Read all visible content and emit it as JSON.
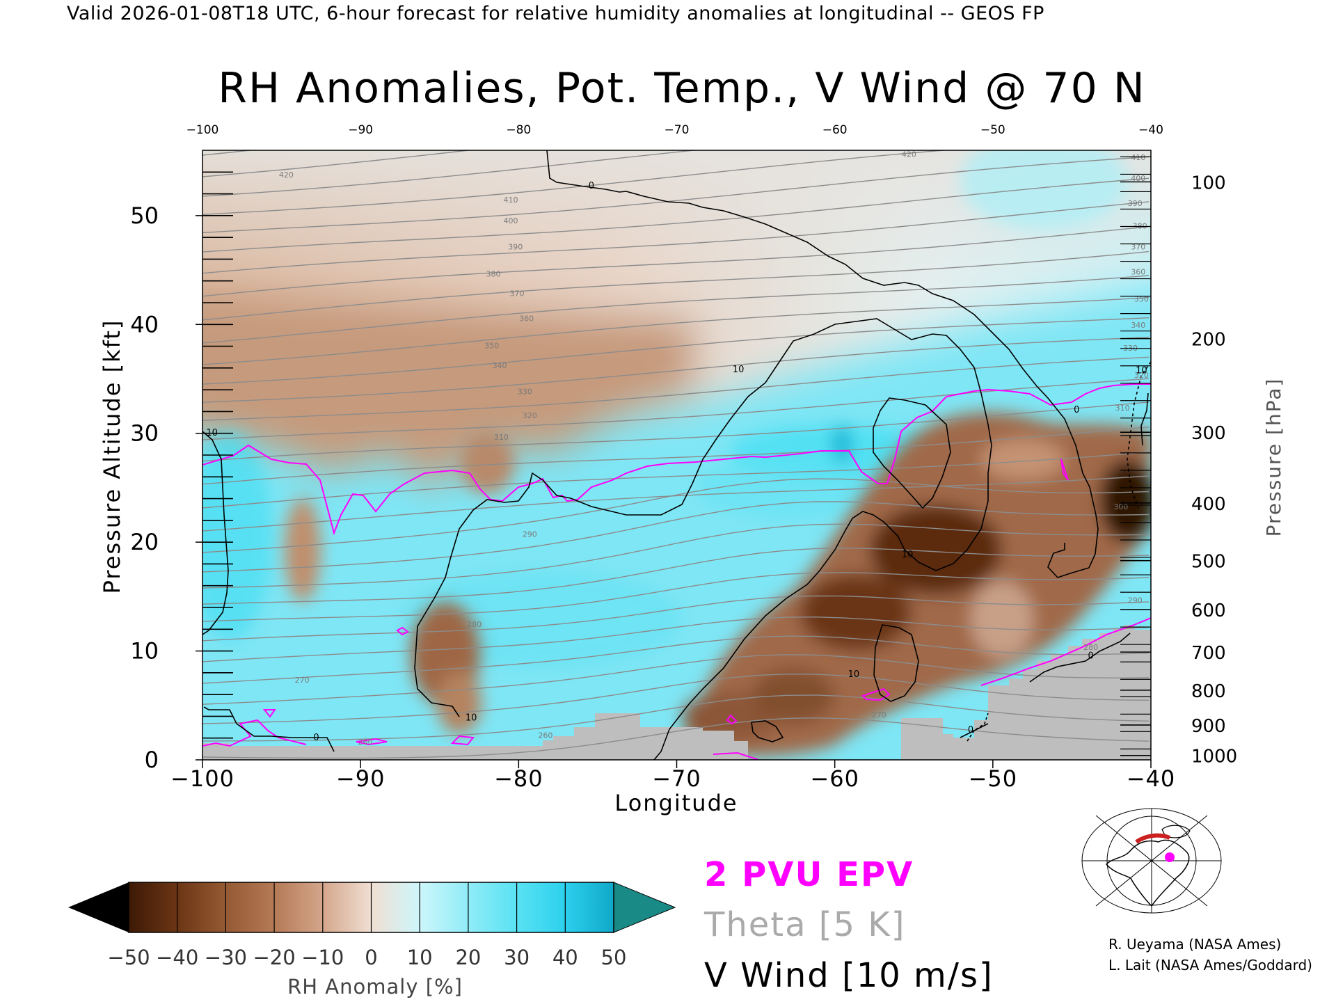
{
  "header": "Valid 2026-01-08T18 UTC, 6-hour forecast for relative humidity anomalies at longitudinal -- GEOS FP",
  "chart_data": {
    "type": "heatmap",
    "title": "RH Anomalies, Pot. Temp., V Wind @ 70 N",
    "xlabel": "Longitude",
    "ylabel_left": "Pressure Altitude [kft]",
    "ylabel_right": "Pressure [hPa]",
    "xlim": [
      -100,
      -40
    ],
    "ylim": [
      0,
      56
    ],
    "x_ticks": [
      "-100",
      "-90",
      "-80",
      "-70",
      "-60",
      "-50",
      "-40"
    ],
    "y_ticks": [
      "0",
      "10",
      "20",
      "30",
      "40",
      "50"
    ],
    "pressure_ticks": [
      {
        "label": "100",
        "kft": 53.1
      },
      {
        "label": "200",
        "kft": 38.7
      },
      {
        "label": "300",
        "kft": 30.1
      },
      {
        "label": "400",
        "kft": 23.6
      },
      {
        "label": "500",
        "kft": 18.3
      },
      {
        "label": "600",
        "kft": 13.8
      },
      {
        "label": "700",
        "kft": 9.9
      },
      {
        "label": "800",
        "kft": 6.4
      },
      {
        "label": "900",
        "kft": 3.2
      },
      {
        "label": "1000",
        "kft": 0.4
      }
    ],
    "colorbar": {
      "label": "RH Anomaly [%]",
      "ticks": [
        "-50",
        "-40",
        "-30",
        "-20",
        "-10",
        "0",
        "10",
        "20",
        "30",
        "40",
        "50"
      ],
      "colors": [
        "#3d1a06",
        "#6b3514",
        "#955a33",
        "#b57a56",
        "#d4a68b",
        "#f0dfd3",
        "#cdf6fb",
        "#90ecf7",
        "#59e2f3",
        "#2cd0ee",
        "#10a8c8"
      ],
      "under_color": "#000000",
      "over_color": "#1a8a86"
    },
    "theta_labels": [
      {
        "text": "420",
        "x": -94.7,
        "y": 53.5
      },
      {
        "text": "410",
        "x": -80.5,
        "y": 51.2
      },
      {
        "text": "400",
        "x": -80.5,
        "y": 49.3
      },
      {
        "text": "390",
        "x": -80.2,
        "y": 46.9
      },
      {
        "text": "380",
        "x": -81.6,
        "y": 44.4
      },
      {
        "text": "370",
        "x": -80.1,
        "y": 42.6
      },
      {
        "text": "360",
        "x": -79.5,
        "y": 40.3
      },
      {
        "text": "350",
        "x": -81.7,
        "y": 37.8
      },
      {
        "text": "340",
        "x": -81.2,
        "y": 36.0
      },
      {
        "text": "330",
        "x": -79.6,
        "y": 33.6
      },
      {
        "text": "320",
        "x": -79.3,
        "y": 31.4
      },
      {
        "text": "310",
        "x": -81.1,
        "y": 29.4
      },
      {
        "text": "290",
        "x": -79.3,
        "y": 20.5
      },
      {
        "text": "280",
        "x": -82.8,
        "y": 12.2
      },
      {
        "text": "270",
        "x": -93.7,
        "y": 7.1
      },
      {
        "text": "260",
        "x": -89.7,
        "y": 1.4
      },
      {
        "text": "260",
        "x": -78.3,
        "y": 2.0
      },
      {
        "text": "270",
        "x": -57.2,
        "y": 3.9
      },
      {
        "text": "300",
        "x": -41.9,
        "y": 23.0
      },
      {
        "text": "290",
        "x": -41.0,
        "y": 14.4
      },
      {
        "text": "280",
        "x": -43.8,
        "y": 10.1
      },
      {
        "text": "420",
        "x": -55.3,
        "y": 55.4
      },
      {
        "text": "410",
        "x": -40.8,
        "y": 55.1
      },
      {
        "text": "400",
        "x": -40.8,
        "y": 53.2
      },
      {
        "text": "390",
        "x": -41.0,
        "y": 50.9
      },
      {
        "text": "380",
        "x": -40.7,
        "y": 48.8
      },
      {
        "text": "370",
        "x": -40.8,
        "y": 46.9
      },
      {
        "text": "360",
        "x": -40.8,
        "y": 44.6
      },
      {
        "text": "350",
        "x": -40.6,
        "y": 42.1
      },
      {
        "text": "340",
        "x": -40.8,
        "y": 39.7
      },
      {
        "text": "330",
        "x": -41.3,
        "y": 37.6
      },
      {
        "text": "320",
        "x": -40.6,
        "y": 35.1
      },
      {
        "text": "310",
        "x": -41.8,
        "y": 32.1
      }
    ],
    "vwind_labels": [
      {
        "text": "0",
        "x": -75.4,
        "y": 52.5
      },
      {
        "text": "10",
        "x": -99.4,
        "y": 29.8
      },
      {
        "text": "10",
        "x": -66.1,
        "y": 35.6
      },
      {
        "text": "10",
        "x": -55.4,
        "y": 18.6
      },
      {
        "text": "10",
        "x": -58.8,
        "y": 7.6
      },
      {
        "text": "10",
        "x": -83.0,
        "y": 3.6
      },
      {
        "text": "10",
        "x": -40.6,
        "y": 35.5
      },
      {
        "text": "0",
        "x": -44.7,
        "y": 31.9
      },
      {
        "text": "0",
        "x": -43.8,
        "y": 9.3
      },
      {
        "text": "0",
        "x": -51.4,
        "y": 2.5
      },
      {
        "text": "0",
        "x": -92.8,
        "y": 1.8
      }
    ],
    "legend": {
      "epv": {
        "text": "2 PVU EPV",
        "color": "#ff00ff"
      },
      "theta": {
        "text": "Theta [5 K]",
        "color": "#aaaaaa"
      },
      "vwind": {
        "text": "V Wind [10 m/s]",
        "color": "#000000"
      }
    }
  },
  "credits": [
    "R. Ueyama (NASA Ames)",
    "L. Lait (NASA Ames/Goddard)"
  ]
}
